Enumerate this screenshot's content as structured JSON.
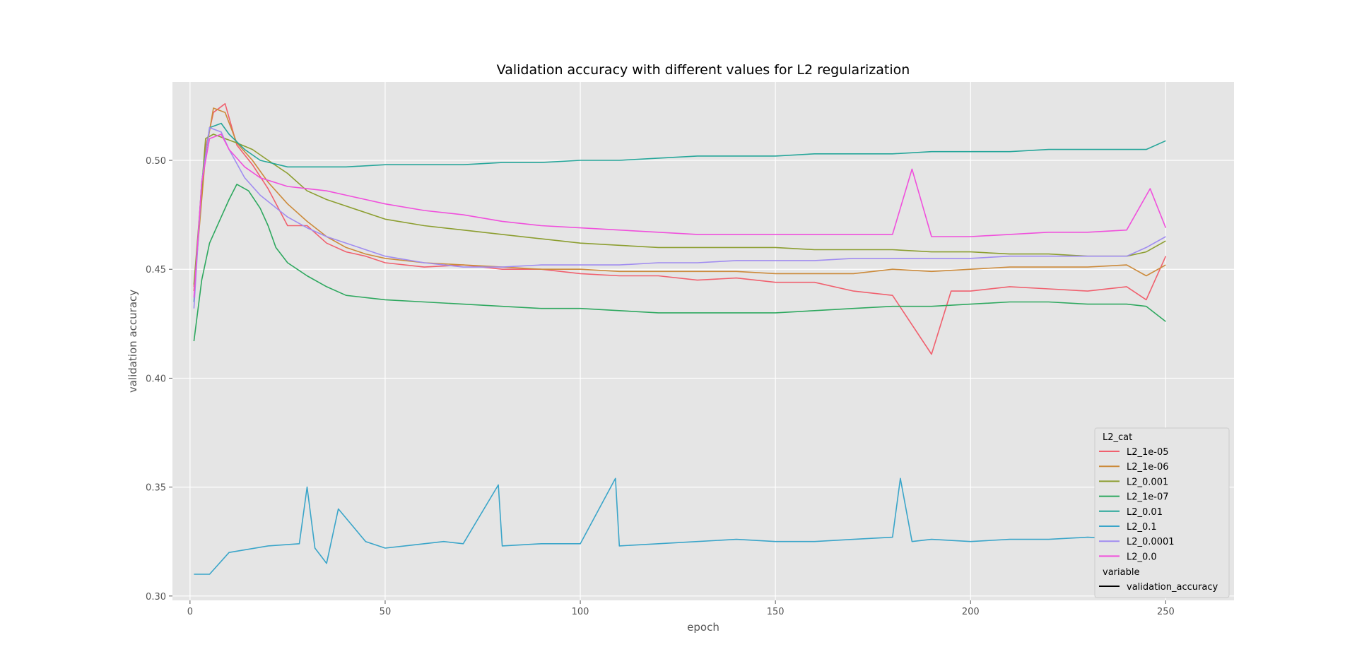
{
  "chart_data": {
    "type": "line",
    "title": "Validation accuracy with different values for L2 regularization",
    "xlabel": "epoch",
    "ylabel": "validation accuracy",
    "xlim": [
      -4.5,
      267.5
    ],
    "ylim": [
      0.298,
      0.536
    ],
    "x_ticks": [
      0,
      50,
      100,
      150,
      200,
      250
    ],
    "y_ticks": [
      0.3,
      0.35,
      0.4,
      0.45,
      0.5
    ],
    "x_tick_labels": [
      "0",
      "50",
      "100",
      "150",
      "200",
      "250"
    ],
    "y_tick_labels": [
      "0.30",
      "0.35",
      "0.40",
      "0.45",
      "0.50"
    ],
    "grid": true,
    "background": "#e5e5e5",
    "legend": {
      "placement": "bottom-right",
      "hue_title": "L2_cat",
      "style_title": "variable",
      "style_entry": "validation_accuracy"
    },
    "series": [
      {
        "name": "L2_1e-05",
        "color": "#f0606e",
        "points": [
          [
            1,
            0.442
          ],
          [
            4,
            0.506
          ],
          [
            6,
            0.522
          ],
          [
            9,
            0.526
          ],
          [
            12,
            0.507
          ],
          [
            16,
            0.498
          ],
          [
            20,
            0.487
          ],
          [
            25,
            0.47
          ],
          [
            30,
            0.47
          ],
          [
            35,
            0.462
          ],
          [
            40,
            0.458
          ],
          [
            45,
            0.456
          ],
          [
            50,
            0.453
          ],
          [
            60,
            0.451
          ],
          [
            70,
            0.452
          ],
          [
            80,
            0.45
          ],
          [
            90,
            0.45
          ],
          [
            100,
            0.448
          ],
          [
            110,
            0.447
          ],
          [
            120,
            0.447
          ],
          [
            130,
            0.445
          ],
          [
            140,
            0.446
          ],
          [
            150,
            0.444
          ],
          [
            160,
            0.444
          ],
          [
            170,
            0.44
          ],
          [
            180,
            0.438
          ],
          [
            190,
            0.411
          ],
          [
            195,
            0.44
          ],
          [
            200,
            0.44
          ],
          [
            210,
            0.442
          ],
          [
            220,
            0.441
          ],
          [
            230,
            0.44
          ],
          [
            240,
            0.442
          ],
          [
            245,
            0.436
          ],
          [
            250,
            0.456
          ]
        ]
      },
      {
        "name": "L2_1e-06",
        "color": "#cc8a3a",
        "points": [
          [
            1,
            0.44
          ],
          [
            4,
            0.503
          ],
          [
            6,
            0.524
          ],
          [
            9,
            0.522
          ],
          [
            12,
            0.508
          ],
          [
            16,
            0.5
          ],
          [
            20,
            0.49
          ],
          [
            25,
            0.48
          ],
          [
            30,
            0.472
          ],
          [
            35,
            0.465
          ],
          [
            40,
            0.46
          ],
          [
            45,
            0.457
          ],
          [
            50,
            0.455
          ],
          [
            60,
            0.453
          ],
          [
            70,
            0.452
          ],
          [
            80,
            0.451
          ],
          [
            90,
            0.45
          ],
          [
            100,
            0.45
          ],
          [
            110,
            0.449
          ],
          [
            120,
            0.449
          ],
          [
            130,
            0.449
          ],
          [
            140,
            0.449
          ],
          [
            150,
            0.448
          ],
          [
            160,
            0.448
          ],
          [
            170,
            0.448
          ],
          [
            180,
            0.45
          ],
          [
            190,
            0.449
          ],
          [
            200,
            0.45
          ],
          [
            210,
            0.451
          ],
          [
            220,
            0.451
          ],
          [
            230,
            0.451
          ],
          [
            240,
            0.452
          ],
          [
            245,
            0.447
          ],
          [
            250,
            0.452
          ]
        ]
      },
      {
        "name": "L2_0.001",
        "color": "#8c9e30",
        "points": [
          [
            1,
            0.443
          ],
          [
            4,
            0.51
          ],
          [
            6,
            0.512
          ],
          [
            9,
            0.51
          ],
          [
            12,
            0.508
          ],
          [
            16,
            0.505
          ],
          [
            20,
            0.5
          ],
          [
            25,
            0.494
          ],
          [
            30,
            0.486
          ],
          [
            35,
            0.482
          ],
          [
            40,
            0.479
          ],
          [
            45,
            0.476
          ],
          [
            50,
            0.473
          ],
          [
            60,
            0.47
          ],
          [
            70,
            0.468
          ],
          [
            80,
            0.466
          ],
          [
            90,
            0.464
          ],
          [
            100,
            0.462
          ],
          [
            110,
            0.461
          ],
          [
            120,
            0.46
          ],
          [
            130,
            0.46
          ],
          [
            140,
            0.46
          ],
          [
            150,
            0.46
          ],
          [
            160,
            0.459
          ],
          [
            170,
            0.459
          ],
          [
            180,
            0.459
          ],
          [
            190,
            0.458
          ],
          [
            200,
            0.458
          ],
          [
            210,
            0.457
          ],
          [
            220,
            0.457
          ],
          [
            230,
            0.456
          ],
          [
            240,
            0.456
          ],
          [
            245,
            0.458
          ],
          [
            250,
            0.463
          ]
        ]
      },
      {
        "name": "L2_1e-07",
        "color": "#2ea85f",
        "points": [
          [
            1,
            0.417
          ],
          [
            3,
            0.445
          ],
          [
            5,
            0.462
          ],
          [
            8,
            0.474
          ],
          [
            10,
            0.482
          ],
          [
            12,
            0.489
          ],
          [
            15,
            0.486
          ],
          [
            18,
            0.478
          ],
          [
            20,
            0.47
          ],
          [
            22,
            0.46
          ],
          [
            25,
            0.453
          ],
          [
            30,
            0.447
          ],
          [
            35,
            0.442
          ],
          [
            40,
            0.438
          ],
          [
            45,
            0.437
          ],
          [
            50,
            0.436
          ],
          [
            60,
            0.435
          ],
          [
            70,
            0.434
          ],
          [
            80,
            0.433
          ],
          [
            90,
            0.432
          ],
          [
            100,
            0.432
          ],
          [
            110,
            0.431
          ],
          [
            120,
            0.43
          ],
          [
            130,
            0.43
          ],
          [
            140,
            0.43
          ],
          [
            150,
            0.43
          ],
          [
            160,
            0.431
          ],
          [
            170,
            0.432
          ],
          [
            180,
            0.433
          ],
          [
            190,
            0.433
          ],
          [
            200,
            0.434
          ],
          [
            210,
            0.435
          ],
          [
            220,
            0.435
          ],
          [
            230,
            0.434
          ],
          [
            240,
            0.434
          ],
          [
            245,
            0.433
          ],
          [
            250,
            0.426
          ]
        ]
      },
      {
        "name": "L2_0.01",
        "color": "#26a69a",
        "points": [
          [
            1,
            0.435
          ],
          [
            3,
            0.49
          ],
          [
            5,
            0.515
          ],
          [
            8,
            0.517
          ],
          [
            10,
            0.512
          ],
          [
            14,
            0.505
          ],
          [
            18,
            0.5
          ],
          [
            25,
            0.497
          ],
          [
            30,
            0.497
          ],
          [
            40,
            0.497
          ],
          [
            50,
            0.498
          ],
          [
            60,
            0.498
          ],
          [
            70,
            0.498
          ],
          [
            80,
            0.499
          ],
          [
            90,
            0.499
          ],
          [
            100,
            0.5
          ],
          [
            110,
            0.5
          ],
          [
            120,
            0.501
          ],
          [
            130,
            0.502
          ],
          [
            140,
            0.502
          ],
          [
            150,
            0.502
          ],
          [
            160,
            0.503
          ],
          [
            170,
            0.503
          ],
          [
            180,
            0.503
          ],
          [
            190,
            0.504
          ],
          [
            200,
            0.504
          ],
          [
            210,
            0.504
          ],
          [
            220,
            0.505
          ],
          [
            230,
            0.505
          ],
          [
            240,
            0.505
          ],
          [
            245,
            0.505
          ],
          [
            250,
            0.509
          ]
        ]
      },
      {
        "name": "L2_0.1",
        "color": "#3aa5c9",
        "points": [
          [
            1,
            0.31
          ],
          [
            5,
            0.31
          ],
          [
            10,
            0.32
          ],
          [
            20,
            0.323
          ],
          [
            28,
            0.324
          ],
          [
            30,
            0.35
          ],
          [
            32,
            0.322
          ],
          [
            35,
            0.315
          ],
          [
            38,
            0.34
          ],
          [
            45,
            0.325
          ],
          [
            50,
            0.322
          ],
          [
            55,
            0.323
          ],
          [
            60,
            0.324
          ],
          [
            65,
            0.325
          ],
          [
            70,
            0.324
          ],
          [
            79,
            0.351
          ],
          [
            80,
            0.323
          ],
          [
            90,
            0.324
          ],
          [
            100,
            0.324
          ],
          [
            109,
            0.354
          ],
          [
            110,
            0.323
          ],
          [
            120,
            0.324
          ],
          [
            130,
            0.325
          ],
          [
            140,
            0.326
          ],
          [
            150,
            0.325
          ],
          [
            160,
            0.325
          ],
          [
            170,
            0.326
          ],
          [
            180,
            0.327
          ],
          [
            182,
            0.354
          ],
          [
            185,
            0.325
          ],
          [
            190,
            0.326
          ],
          [
            200,
            0.325
          ],
          [
            210,
            0.326
          ],
          [
            220,
            0.326
          ],
          [
            230,
            0.327
          ],
          [
            240,
            0.326
          ],
          [
            250,
            0.325
          ]
        ]
      },
      {
        "name": "L2_0.0001",
        "color": "#a08cf0",
        "points": [
          [
            1,
            0.432
          ],
          [
            3,
            0.49
          ],
          [
            5,
            0.515
          ],
          [
            8,
            0.513
          ],
          [
            10,
            0.505
          ],
          [
            14,
            0.492
          ],
          [
            18,
            0.484
          ],
          [
            25,
            0.474
          ],
          [
            30,
            0.469
          ],
          [
            35,
            0.465
          ],
          [
            40,
            0.462
          ],
          [
            45,
            0.459
          ],
          [
            50,
            0.456
          ],
          [
            60,
            0.453
          ],
          [
            70,
            0.451
          ],
          [
            80,
            0.451
          ],
          [
            90,
            0.452
          ],
          [
            100,
            0.452
          ],
          [
            110,
            0.452
          ],
          [
            120,
            0.453
          ],
          [
            130,
            0.453
          ],
          [
            140,
            0.454
          ],
          [
            150,
            0.454
          ],
          [
            160,
            0.454
          ],
          [
            170,
            0.455
          ],
          [
            180,
            0.455
          ],
          [
            190,
            0.455
          ],
          [
            200,
            0.455
          ],
          [
            210,
            0.456
          ],
          [
            220,
            0.456
          ],
          [
            230,
            0.456
          ],
          [
            240,
            0.456
          ],
          [
            245,
            0.46
          ],
          [
            250,
            0.465
          ]
        ]
      },
      {
        "name": "L2_0.0",
        "color": "#f050dc",
        "points": [
          [
            1,
            0.437
          ],
          [
            3,
            0.49
          ],
          [
            5,
            0.51
          ],
          [
            8,
            0.512
          ],
          [
            10,
            0.505
          ],
          [
            14,
            0.497
          ],
          [
            18,
            0.492
          ],
          [
            25,
            0.488
          ],
          [
            30,
            0.487
          ],
          [
            35,
            0.486
          ],
          [
            40,
            0.484
          ],
          [
            45,
            0.482
          ],
          [
            50,
            0.48
          ],
          [
            60,
            0.477
          ],
          [
            70,
            0.475
          ],
          [
            80,
            0.472
          ],
          [
            90,
            0.47
          ],
          [
            100,
            0.469
          ],
          [
            110,
            0.468
          ],
          [
            120,
            0.467
          ],
          [
            130,
            0.466
          ],
          [
            140,
            0.466
          ],
          [
            150,
            0.466
          ],
          [
            160,
            0.466
          ],
          [
            170,
            0.466
          ],
          [
            180,
            0.466
          ],
          [
            185,
            0.496
          ],
          [
            190,
            0.465
          ],
          [
            200,
            0.465
          ],
          [
            210,
            0.466
          ],
          [
            220,
            0.467
          ],
          [
            230,
            0.467
          ],
          [
            240,
            0.468
          ],
          [
            246,
            0.487
          ],
          [
            250,
            0.469
          ]
        ]
      }
    ]
  }
}
